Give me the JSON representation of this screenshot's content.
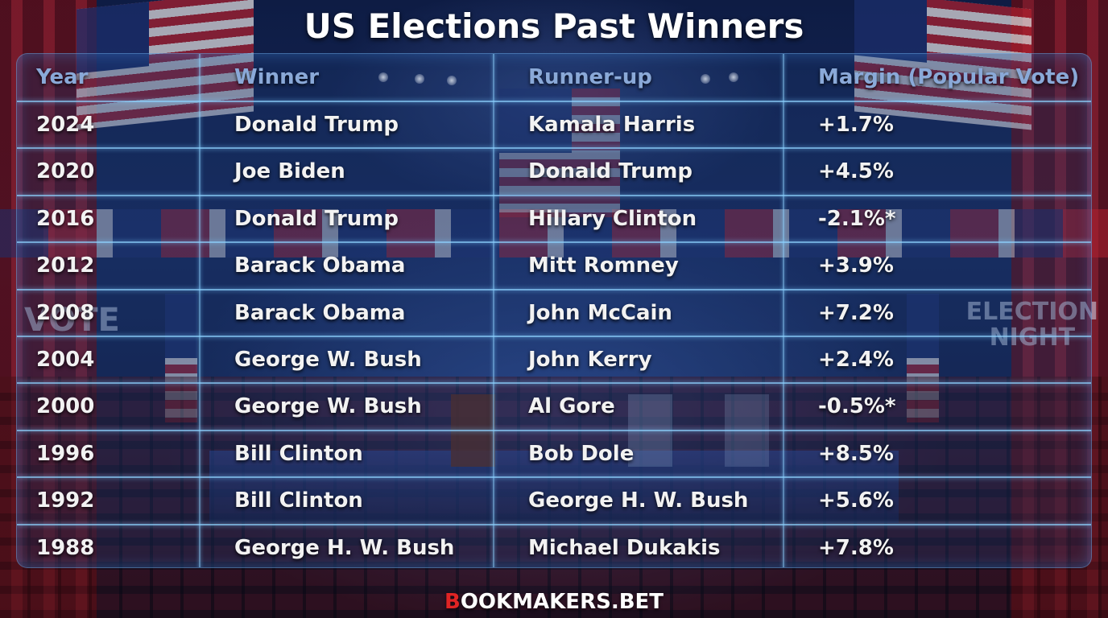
{
  "title": "US Elections Past Winners",
  "columns": {
    "year": "Year",
    "winner": "Winner",
    "runner_up": "Runner-up",
    "margin": "Margin (Popular Vote)"
  },
  "rows": [
    {
      "year": "2024",
      "winner": "Donald Trump",
      "runner_up": "Kamala Harris",
      "margin": "+1.7%"
    },
    {
      "year": "2020",
      "winner": "Joe Biden",
      "runner_up": "Donald Trump",
      "margin": "+4.5%"
    },
    {
      "year": "2016",
      "winner": "Donald Trump",
      "runner_up": "Hillary Clinton",
      "margin": "-2.1%*"
    },
    {
      "year": "2012",
      "winner": "Barack Obama",
      "runner_up": "Mitt Romney",
      "margin": "+3.9%"
    },
    {
      "year": "2008",
      "winner": "Barack Obama",
      "runner_up": "John McCain",
      "margin": "+7.2%"
    },
    {
      "year": "2004",
      "winner": "George W. Bush",
      "runner_up": "John Kerry",
      "margin": "+2.4%"
    },
    {
      "year": "2000",
      "winner": "George W. Bush",
      "runner_up": "Al Gore",
      "margin": "-0.5%*"
    },
    {
      "year": "1996",
      "winner": "Bill Clinton",
      "runner_up": "Bob Dole",
      "margin": "+8.5%"
    },
    {
      "year": "1992",
      "winner": "Bill Clinton",
      "runner_up": "George H. W. Bush",
      "margin": "+5.6%"
    },
    {
      "year": "1988",
      "winner": "George H. W. Bush",
      "runner_up": "Michael Dukakis",
      "margin": "+7.8%"
    }
  ],
  "background": {
    "vote_sign": "VOTE",
    "election_sign_line1": "ELECTION",
    "election_sign_line2": "NIGHT"
  },
  "logo": {
    "first_letter": "B",
    "rest": "OOKMAKERS.BET"
  },
  "colors": {
    "accent_red": "#e02424",
    "grid_line": "#8cd2ff",
    "header_text": "#8aa9d8",
    "cell_text": "#f2f2f2"
  }
}
